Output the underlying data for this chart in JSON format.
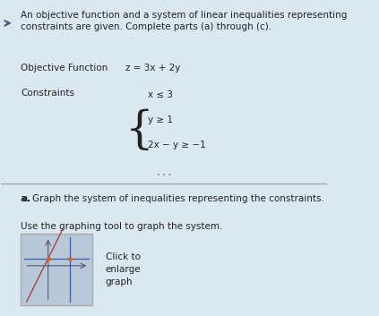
{
  "bg_color": "#dce8f0",
  "page_bg": "#e8eef2",
  "text_color": "#222222",
  "title_text": "An objective function and a system of linear inequalities representing\nconstraints are given. Complete parts (a) through (c).",
  "obj_label": "Objective Function",
  "obj_func": "z = 3x + 2y",
  "constraints_label": "Constraints",
  "c1": "x ≤ 3",
  "c2": "y ≥ 1",
  "c3": "2x − y ≥ −1",
  "part_a": "a. Graph the system of inequalities representing the constraints.",
  "part_a2": "Use the graphing tool to graph the system.",
  "click_text": "Click to\nenlarge\ngraph",
  "graph_bg": "#b8c8d8",
  "graph_border": "#aaaaaa",
  "axis_color": "#555577",
  "line1_color": "#4466aa",
  "line2_color": "#aa4444",
  "dot_color": "#cc6633",
  "divider_color": "#999999",
  "dots_color": "#888888"
}
